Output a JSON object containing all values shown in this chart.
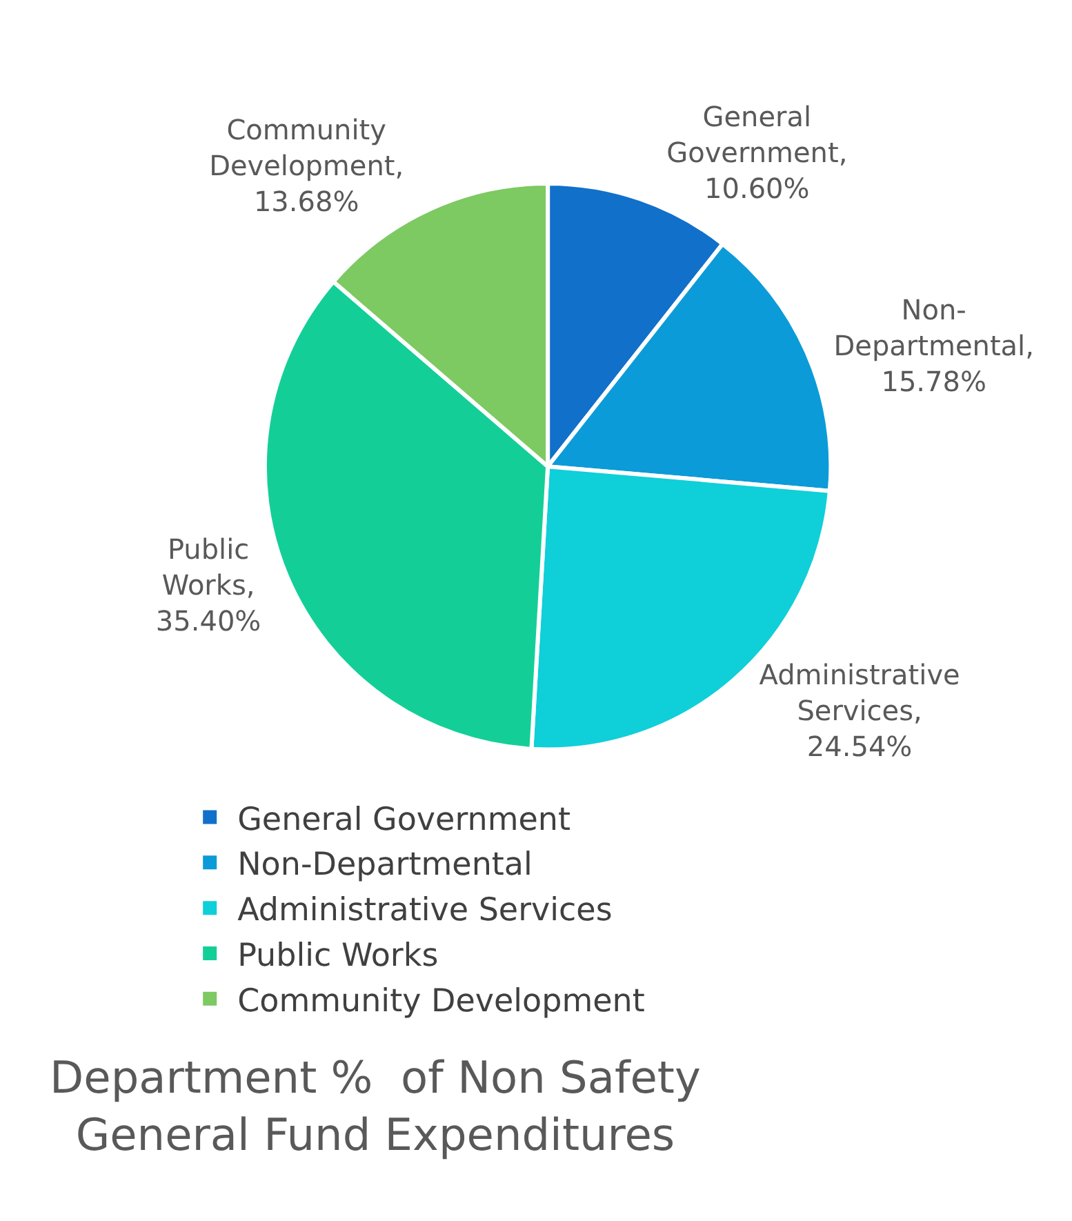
{
  "chart_data": {
    "type": "pie",
    "title": "Department %  of Non Safety\nGeneral Fund Expenditures",
    "categories": [
      "General Government",
      "Non-Departmental",
      "Administrative Services",
      "Public Works",
      "Community Development"
    ],
    "values": [
      10.6,
      15.78,
      24.54,
      35.4,
      13.68
    ],
    "colors": [
      "#1170c9",
      "#0b9bd8",
      "#0fcfd9",
      "#13cf97",
      "#7dc962"
    ],
    "value_labels": [
      "General\nGovernment,\n10.60%",
      "Non-\nDepartmental,\n15.78%",
      "Administrative\nServices,\n24.54%",
      "Public\nWorks,\n35.40%",
      "Community\nDevelopment,\n13.68%"
    ],
    "legend": "bottom left"
  }
}
